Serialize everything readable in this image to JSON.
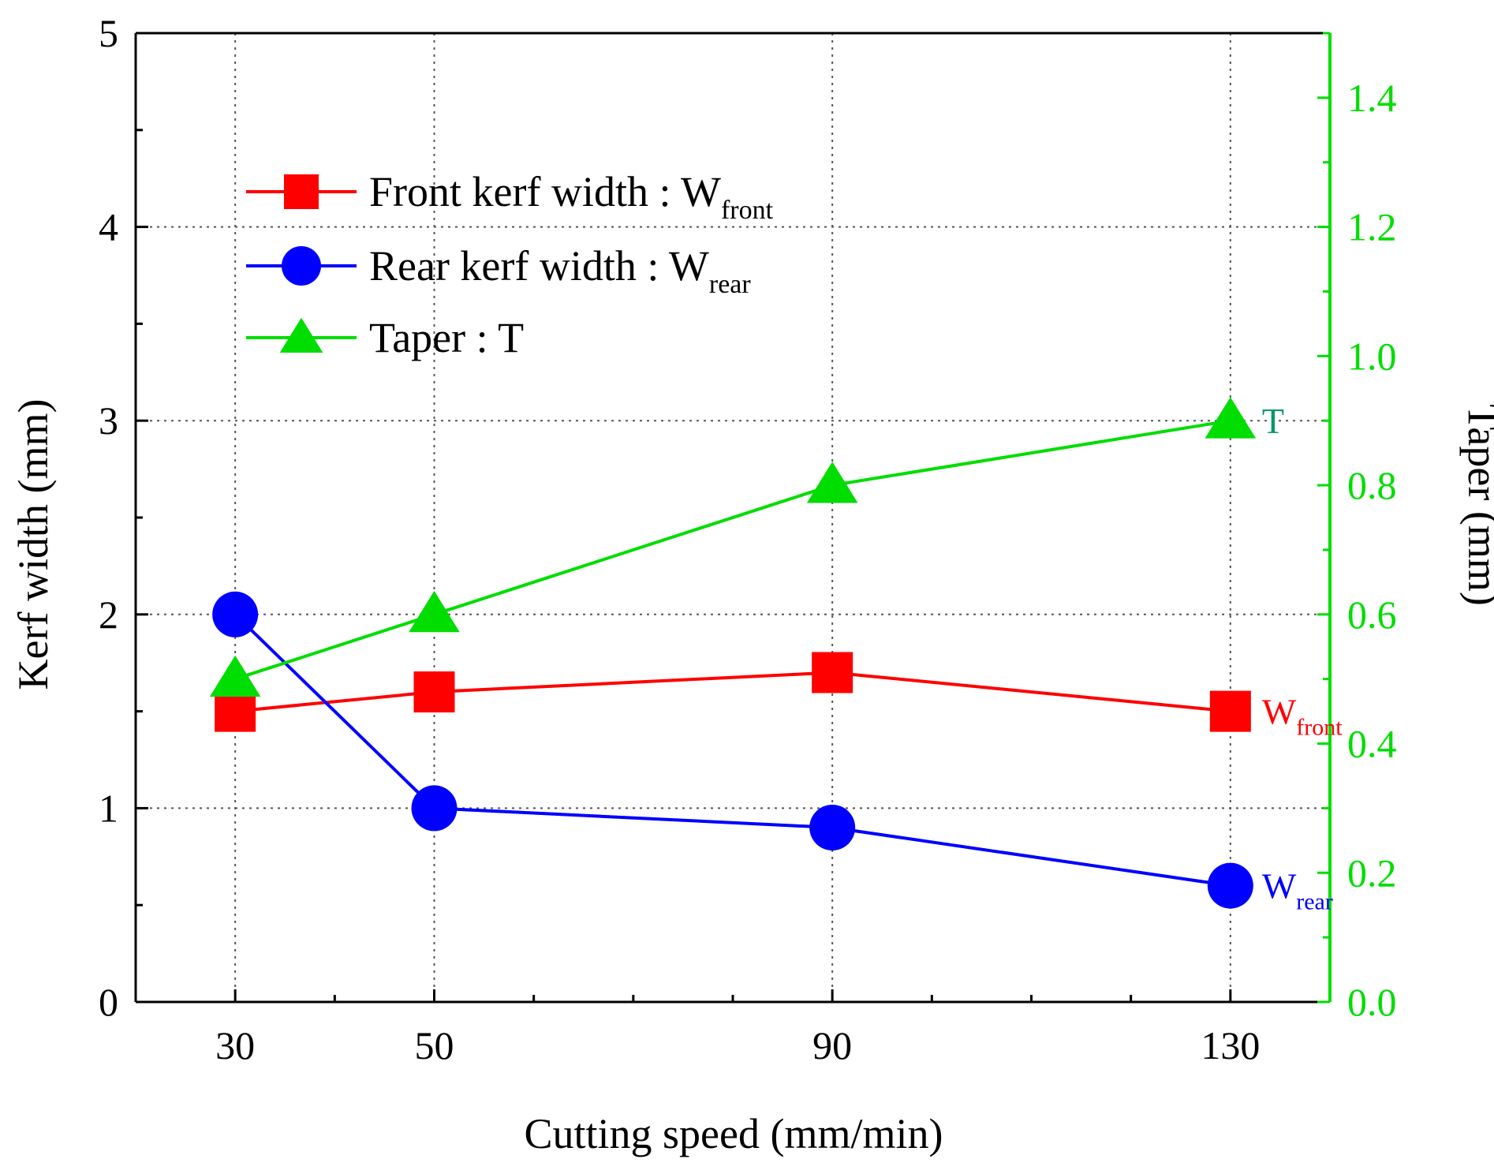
{
  "chart_data": {
    "type": "line",
    "x": [
      30,
      50,
      90,
      130
    ],
    "xlabel": "Cutting speed (mm/min)",
    "x_ticks": [
      "30",
      "50",
      "90",
      "130"
    ],
    "xlim": [
      20,
      140
    ],
    "ylabel_left": "Kerf width (mm)",
    "ylim_left": [
      0,
      5
    ],
    "y_ticks_left": [
      "0",
      "1",
      "2",
      "3",
      "4",
      "5"
    ],
    "ylabel_right": "Taper (mm)",
    "ylim_right": [
      0,
      1.5
    ],
    "y_ticks_right": [
      "0.0",
      "0.2",
      "0.4",
      "0.6",
      "0.8",
      "1.0",
      "1.2",
      "1.4"
    ],
    "grid": "dotted",
    "legend_position": "top-left",
    "series": [
      {
        "name": "Front kerf width : W",
        "name_sub": "front",
        "axis": "left",
        "marker": "square",
        "color": "#ff0000",
        "values": [
          1.5,
          1.6,
          1.7,
          1.5
        ],
        "end_label": "W",
        "end_label_sub": "front"
      },
      {
        "name": "Rear kerf width : W",
        "name_sub": "rear",
        "axis": "left",
        "marker": "circle",
        "color": "#0000ff",
        "values": [
          2.0,
          1.0,
          0.9,
          0.6
        ],
        "end_label": "W",
        "end_label_sub": "rear"
      },
      {
        "name": "Taper : T",
        "name_sub": "",
        "axis": "right",
        "marker": "triangle",
        "color": "#00dd00",
        "values": [
          0.5,
          0.6,
          0.8,
          0.9
        ],
        "end_label": "T",
        "end_label_sub": "",
        "end_label_color": "#009966"
      }
    ],
    "right_axis_color": "#00dd00"
  }
}
